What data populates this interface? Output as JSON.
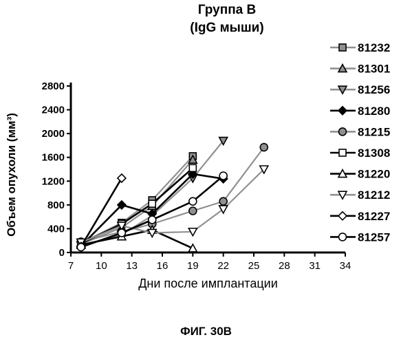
{
  "header": {
    "title_line1": "Группа В",
    "title_line2": "(IgG мыши)"
  },
  "footer": {
    "figure_label": "ФИГ. 30В"
  },
  "chart_data": {
    "type": "line",
    "title": "Группа В\n(IgG мыши)",
    "xlabel": "Дни после имплантации",
    "ylabel": "Объем опухоли (мм³)",
    "xlim": [
      7,
      34
    ],
    "ylim": [
      0,
      2800
    ],
    "xticks": [
      7,
      10,
      13,
      16,
      19,
      22,
      25,
      28,
      31,
      34
    ],
    "yticks": [
      0,
      400,
      800,
      1200,
      1600,
      2000,
      2400,
      2800
    ],
    "legend_position": "right",
    "series": [
      {
        "name": "81232",
        "marker": "square-filled",
        "color": "#909090",
        "x": [
          8,
          12,
          15,
          19
        ],
        "y": [
          160,
          500,
          880,
          1620
        ]
      },
      {
        "name": "81301",
        "marker": "triangle-up-filled",
        "color": "#909090",
        "x": [
          8,
          12,
          15,
          19
        ],
        "y": [
          140,
          420,
          780,
          1560
        ]
      },
      {
        "name": "81256",
        "marker": "triangle-down-filled",
        "color": "#909090",
        "x": [
          8,
          12,
          15,
          19,
          22
        ],
        "y": [
          120,
          300,
          620,
          1250,
          1880
        ]
      },
      {
        "name": "81280",
        "marker": "diamond-filled",
        "color": "#000000",
        "x": [
          8,
          12,
          15,
          19,
          22
        ],
        "y": [
          110,
          800,
          650,
          1320,
          1240
        ]
      },
      {
        "name": "81215",
        "marker": "circle-filled",
        "color": "#909090",
        "x": [
          8,
          12,
          15,
          19,
          22,
          26
        ],
        "y": [
          180,
          350,
          480,
          700,
          860,
          1770
        ]
      },
      {
        "name": "81308",
        "marker": "square-open",
        "color": "#000000",
        "x": [
          8,
          12,
          15,
          19
        ],
        "y": [
          150,
          480,
          820,
          1420
        ]
      },
      {
        "name": "81220",
        "marker": "triangle-up-open",
        "color": "#000000",
        "x": [
          8,
          12,
          15,
          19
        ],
        "y": [
          130,
          270,
          380,
          70
        ]
      },
      {
        "name": "81212",
        "marker": "triangle-down-open",
        "color": "#909090",
        "x": [
          8,
          12,
          15,
          19,
          22,
          26
        ],
        "y": [
          170,
          450,
          330,
          350,
          730,
          1400
        ]
      },
      {
        "name": "81227",
        "marker": "diamond-open",
        "color": "#000000",
        "x": [
          8,
          12
        ],
        "y": [
          100,
          1250
        ]
      },
      {
        "name": "81257",
        "marker": "circle-open",
        "color": "#000000",
        "x": [
          8,
          12,
          15,
          19,
          22
        ],
        "y": [
          90,
          330,
          550,
          860,
          1290
        ]
      }
    ]
  }
}
